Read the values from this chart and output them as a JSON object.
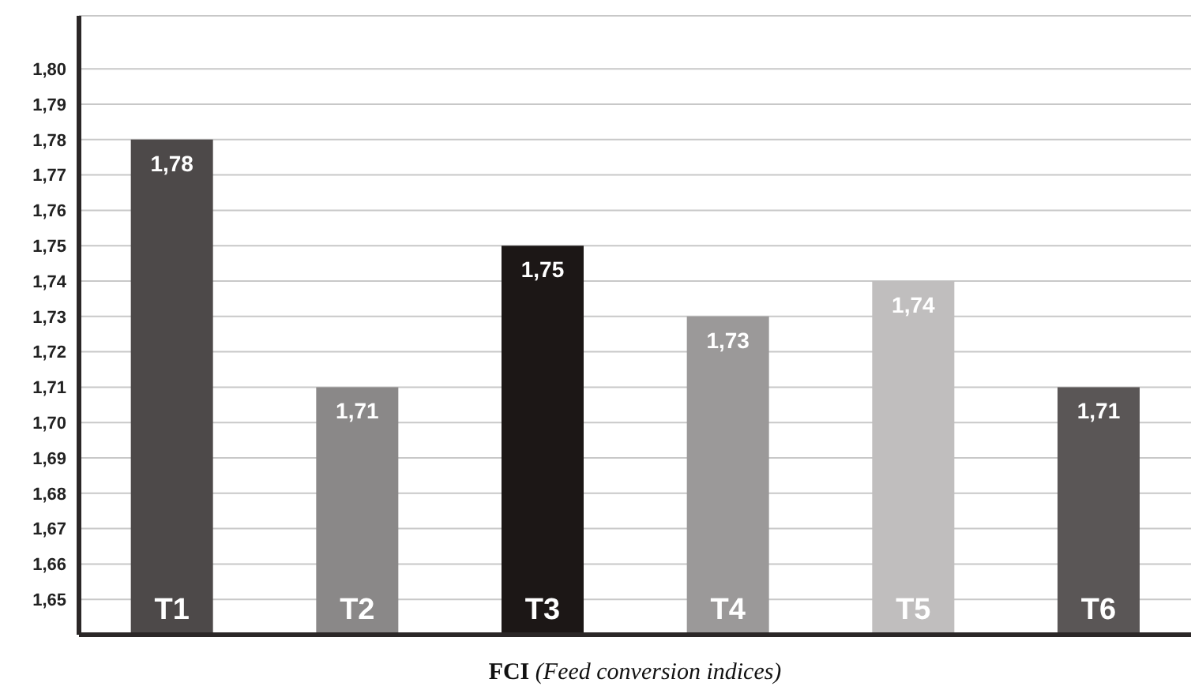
{
  "chart_data": {
    "type": "bar",
    "xlabel": "FCI (Feed conversion indices)",
    "categories": [
      "T1",
      "T2",
      "T3",
      "T4",
      "T5",
      "T6"
    ],
    "values": [
      1.78,
      1.71,
      1.75,
      1.73,
      1.74,
      1.71
    ],
    "colors": [
      "#4d4949",
      "#8a8888",
      "#1c1716",
      "#9b9999",
      "#c0bebe",
      "#5a5656"
    ],
    "value_labels": [
      "1,78",
      "1,71",
      "1,75",
      "1,73",
      "1,74",
      "1,71"
    ],
    "ylim": [
      1.64,
      1.815
    ],
    "yticks": [
      {
        "value": 1.65,
        "label": "1,65"
      },
      {
        "value": 1.66,
        "label": "1,66"
      },
      {
        "value": 1.67,
        "label": "1,67"
      },
      {
        "value": 1.68,
        "label": "1,68"
      },
      {
        "value": 1.69,
        "label": "1,69"
      },
      {
        "value": 1.7,
        "label": "1,70"
      },
      {
        "value": 1.71,
        "label": "1,71"
      },
      {
        "value": 1.72,
        "label": "1,72"
      },
      {
        "value": 1.73,
        "label": "1,73"
      },
      {
        "value": 1.74,
        "label": "1,74"
      },
      {
        "value": 1.75,
        "label": "1,75"
      },
      {
        "value": 1.76,
        "label": "1,76"
      },
      {
        "value": 1.77,
        "label": "1,77"
      },
      {
        "value": 1.78,
        "label": "1,78"
      },
      {
        "value": 1.79,
        "label": "1,79"
      },
      {
        "value": 1.8,
        "label": "1,80"
      }
    ],
    "grid": "y",
    "tick_labels": "y"
  }
}
